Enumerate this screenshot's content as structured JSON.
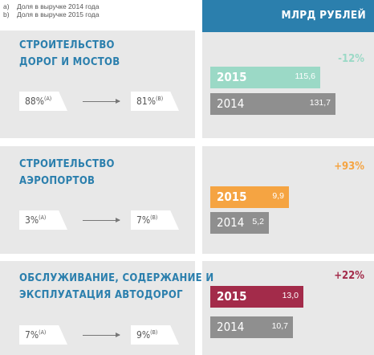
{
  "footnotes": [
    {
      "key": "a)",
      "text": "Доля в выручке 2014 года"
    },
    {
      "key": "b)",
      "text": "Доля в выручке 2015 года"
    }
  ],
  "header": {
    "label": "МЛРД РУБЛЕЙ"
  },
  "share_note_marks": {
    "a": "(А)",
    "b": "(В)"
  },
  "sectors": [
    {
      "title_lines": [
        "СТРОИТЕЛЬСТВО",
        "ДОРОГ И МОСТОВ"
      ],
      "share_2014": "88%",
      "share_2015": "81%",
      "change": "-12%",
      "color_2015": "#9bd9c6",
      "bar_2015": {
        "year": "2015",
        "label": "115,6"
      },
      "bar_2014": {
        "year": "2014",
        "label": "131,7"
      }
    },
    {
      "title_lines": [
        "СТРОИТЕЛЬСТВО",
        "АЭРОПОРТОВ"
      ],
      "share_2014": "3%",
      "share_2015": "7%",
      "change": "+93%",
      "color_2015": "#f5a442",
      "bar_2015": {
        "year": "2015",
        "label": "9,9"
      },
      "bar_2014": {
        "year": "2014",
        "label": "5,2"
      }
    },
    {
      "title_lines": [
        "ОБСЛУЖИВАНИЕ, СОДЕРЖАНИЕ И",
        "ЭКСПЛУАТАЦИЯ АВТОДОРОГ"
      ],
      "share_2014": "7%",
      "share_2015": "9%",
      "change": "+22%",
      "color_2015": "#a32b4a",
      "bar_2015": {
        "year": "2015",
        "label": "13,0"
      },
      "bar_2014": {
        "year": "2014",
        "label": "10,7"
      }
    }
  ],
  "colors": {
    "accent": "#2b7fad",
    "bar_2014": "#8f8f8f",
    "panel": "#e8e8e8"
  },
  "chart_data": {
    "type": "bar",
    "unit": "МЛРД РУБЛЕЙ",
    "categories": [
      "СТРОИТЕЛЬСТВО ДОРОГ И МОСТОВ",
      "СТРОИТЕЛЬСТВО АЭРОПОРТОВ",
      "ОБСЛУЖИВАНИЕ, СОДЕРЖАНИЕ И ЭКСПЛУАТАЦИЯ АВТОДОРОГ"
    ],
    "series": [
      {
        "name": "2015",
        "values": [
          115.6,
          9.9,
          13.0
        ]
      },
      {
        "name": "2014",
        "values": [
          131.7,
          5.2,
          10.7
        ]
      }
    ],
    "changes": [
      "-12%",
      "+93%",
      "+22%"
    ],
    "revenue_share_2014": [
      "88%",
      "3%",
      "7%"
    ],
    "revenue_share_2015": [
      "81%",
      "7%",
      "9%"
    ]
  }
}
